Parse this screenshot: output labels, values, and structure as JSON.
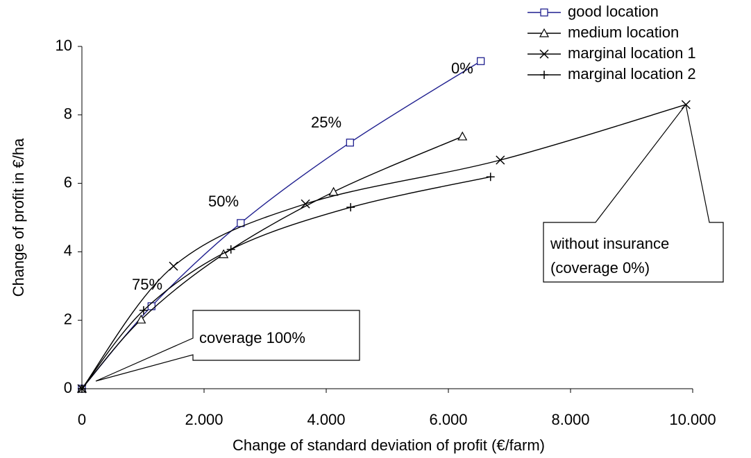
{
  "chart_data": {
    "type": "line",
    "xlabel": "Change of standard deviation of profit (€/farm)",
    "ylabel": "Change of profit in €/ha",
    "xlim": [
      0,
      10000
    ],
    "xticks": [
      0,
      {
        "value": 2000,
        "label": "2.000"
      },
      {
        "value": 4000,
        "label": "4.000"
      },
      {
        "value": 6000,
        "label": "6.000"
      },
      {
        "value": 8000,
        "label": "8.000"
      },
      {
        "value": 10000,
        "label": "10.000"
      }
    ],
    "ylim": [
      0,
      10
    ],
    "yticks": [
      0,
      2,
      4,
      6,
      8,
      10
    ],
    "legend": "top-right",
    "series": [
      {
        "name": "good location",
        "color": "#1f1f8f",
        "marker": "square",
        "x": [
          0,
          1140,
          2600,
          4390,
          6530
        ],
        "values": [
          0,
          2.41,
          4.84,
          7.19,
          9.57
        ]
      },
      {
        "name": "medium location",
        "color": "#000000",
        "marker": "triangle",
        "x": [
          0,
          970,
          2320,
          4120,
          6230
        ],
        "values": [
          0,
          2.02,
          3.93,
          5.75,
          7.37
        ]
      },
      {
        "name": "marginal location 1",
        "color": "#000000",
        "marker": "x",
        "x": [
          0,
          1500,
          3660,
          6850,
          9890
        ],
        "values": [
          0,
          3.58,
          5.4,
          6.68,
          8.3
        ]
      },
      {
        "name": "marginal location 2",
        "color": "#000000",
        "marker": "plus",
        "x": [
          0,
          1010,
          2440,
          4400,
          6690
        ],
        "values": [
          0,
          2.29,
          4.07,
          5.3,
          6.19
        ]
      }
    ],
    "annotations": [
      "0%",
      "25%",
      "50%",
      "75%"
    ],
    "callouts": [
      [
        "coverage 100%"
      ],
      [
        "without insurance",
        "(coverage  0%)"
      ]
    ]
  }
}
